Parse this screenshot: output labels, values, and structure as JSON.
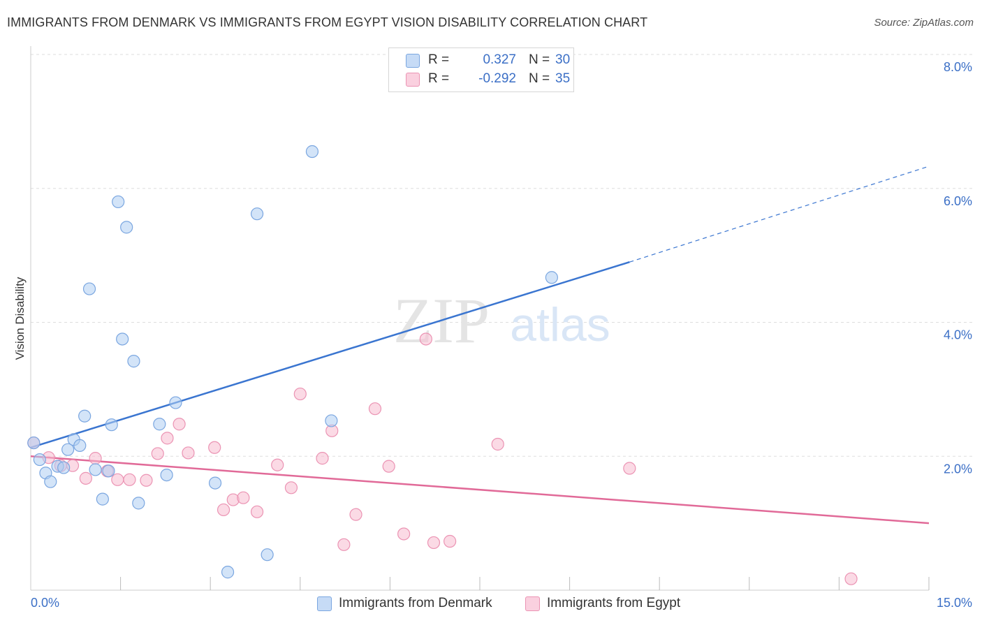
{
  "header": {
    "title": "IMMIGRANTS FROM DENMARK VS IMMIGRANTS FROM EGYPT VISION DISABILITY CORRELATION CHART",
    "source": "Source: ZipAtlas.com"
  },
  "watermark": {
    "zip": "ZIP",
    "atlas": "atlas"
  },
  "legend": {
    "rows": [
      {
        "r_label": "R =",
        "r_value": "0.327",
        "n_label": "N =",
        "n_value": "30",
        "color": "#aecdf2"
      },
      {
        "r_label": "R =",
        "r_value": "-0.292",
        "n_label": "N =",
        "n_value": "35",
        "color": "#f7bcd0"
      }
    ]
  },
  "chart_data": {
    "type": "scatter",
    "title": "IMMIGRANTS FROM DENMARK VS IMMIGRANTS FROM EGYPT VISION DISABILITY CORRELATION CHART",
    "xlabel": "",
    "ylabel": "Vision Disability",
    "xlim": [
      0,
      15
    ],
    "ylim": [
      0,
      8
    ],
    "x_tick_labels": [
      "0.0%",
      "15.0%"
    ],
    "y_ticks": [
      2,
      4,
      6,
      8
    ],
    "y_tick_labels": [
      "2.0%",
      "4.0%",
      "6.0%",
      "8.0%"
    ],
    "grid": true,
    "legend_position": "top-center",
    "series": [
      {
        "name": "Immigrants from Denmark",
        "color": "#3a75d0",
        "fill": "#aecdf2",
        "stroke": "#7aa6e0",
        "r": 0.327,
        "n": 30,
        "points": [
          [
            0.05,
            2.2
          ],
          [
            0.15,
            1.95
          ],
          [
            0.25,
            1.75
          ],
          [
            0.33,
            1.62
          ],
          [
            0.45,
            1.85
          ],
          [
            0.55,
            1.83
          ],
          [
            0.62,
            2.1
          ],
          [
            0.72,
            2.25
          ],
          [
            0.82,
            2.16
          ],
          [
            0.9,
            2.6
          ],
          [
            0.98,
            4.5
          ],
          [
            1.08,
            1.8
          ],
          [
            1.2,
            1.36
          ],
          [
            1.3,
            1.78
          ],
          [
            1.35,
            2.47
          ],
          [
            1.46,
            5.8
          ],
          [
            1.53,
            3.75
          ],
          [
            1.6,
            5.42
          ],
          [
            1.72,
            3.42
          ],
          [
            1.8,
            1.3
          ],
          [
            2.15,
            2.48
          ],
          [
            2.27,
            1.72
          ],
          [
            2.42,
            2.8
          ],
          [
            3.08,
            1.6
          ],
          [
            3.29,
            0.27
          ],
          [
            3.78,
            5.62
          ],
          [
            3.95,
            0.53
          ],
          [
            4.7,
            6.55
          ],
          [
            5.02,
            2.53
          ],
          [
            8.7,
            4.67
          ]
        ],
        "trend": {
          "x0": 0,
          "y0": 2.13,
          "x1": 10.0,
          "y1": 4.9,
          "dash_to_x": 15.0,
          "dash_to_y": 6.33
        }
      },
      {
        "name": "Immigrants from Egypt",
        "color": "#e16a98",
        "fill": "#f7bcd0",
        "stroke": "#eb93b3",
        "r": -0.292,
        "n": 35,
        "points": [
          [
            0.05,
            2.2
          ],
          [
            0.3,
            1.98
          ],
          [
            0.5,
            1.86
          ],
          [
            0.7,
            1.86
          ],
          [
            0.92,
            1.67
          ],
          [
            1.08,
            1.97
          ],
          [
            1.28,
            1.78
          ],
          [
            1.45,
            1.65
          ],
          [
            1.65,
            1.65
          ],
          [
            1.93,
            1.64
          ],
          [
            2.12,
            2.04
          ],
          [
            2.28,
            2.27
          ],
          [
            2.48,
            2.48
          ],
          [
            2.63,
            2.05
          ],
          [
            3.07,
            2.13
          ],
          [
            3.22,
            1.2
          ],
          [
            3.38,
            1.35
          ],
          [
            3.55,
            1.38
          ],
          [
            3.78,
            1.17
          ],
          [
            4.12,
            1.87
          ],
          [
            4.35,
            1.53
          ],
          [
            4.5,
            2.93
          ],
          [
            4.87,
            1.97
          ],
          [
            5.03,
            2.38
          ],
          [
            5.23,
            0.68
          ],
          [
            5.43,
            1.13
          ],
          [
            5.75,
            2.71
          ],
          [
            5.98,
            1.85
          ],
          [
            6.23,
            0.84
          ],
          [
            6.6,
            3.75
          ],
          [
            6.73,
            0.71
          ],
          [
            7.0,
            0.73
          ],
          [
            7.8,
            2.18
          ],
          [
            10.0,
            1.82
          ],
          [
            13.7,
            0.17
          ]
        ],
        "trend": {
          "x0": 0,
          "y0": 2.0,
          "x1": 15.0,
          "y1": 1.0
        }
      }
    ]
  },
  "bottom_legend": [
    {
      "label": "Immigrants from Denmark",
      "color": "#aecdf2"
    },
    {
      "label": "Immigrants from Egypt",
      "color": "#f7bcd0"
    }
  ]
}
